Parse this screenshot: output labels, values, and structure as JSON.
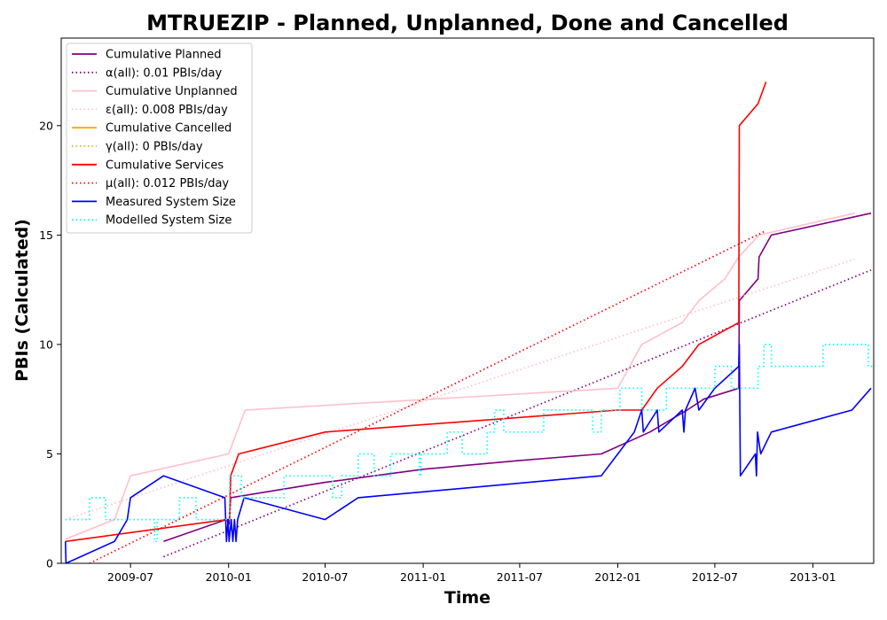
{
  "chart_data": {
    "type": "line",
    "title": "MTRUEZIP - Planned, Unplanned, Done  and Cancelled",
    "xlabel": "Time",
    "ylabel": "PBIs (Calculated)",
    "xlim": [
      "2009-02-21",
      "2013-04-25"
    ],
    "ylim": [
      0,
      24
    ],
    "xticks": [
      "2009-07",
      "2010-01",
      "2010-07",
      "2011-01",
      "2011-07",
      "2012-01",
      "2012-07",
      "2013-01"
    ],
    "xtick_dates": [
      "2009-07-01",
      "2010-01-01",
      "2010-07-01",
      "2011-01-01",
      "2011-07-01",
      "2012-01-01",
      "2012-07-01",
      "2013-01-01"
    ],
    "yticks": [
      0,
      5,
      10,
      15,
      20
    ],
    "grid": false,
    "legend_position": "top-left",
    "series": [
      {
        "name": "Cumulative Planned",
        "color": "#800080",
        "style": "solid",
        "points": [
          [
            "2009-09-01",
            1
          ],
          [
            "2009-12-28",
            2
          ],
          [
            "2010-01-02",
            1.8
          ],
          [
            "2010-01-05",
            3
          ],
          [
            "2010-07-01",
            3.7
          ],
          [
            "2010-10-01",
            4
          ],
          [
            "2011-01-01",
            4.3
          ],
          [
            "2011-07-01",
            4.7
          ],
          [
            "2011-12-01",
            5
          ],
          [
            "2012-03-01",
            6
          ],
          [
            "2012-05-10",
            7
          ],
          [
            "2012-06-10",
            7.5
          ],
          [
            "2012-08-15",
            8
          ],
          [
            "2012-08-16",
            12
          ],
          [
            "2012-09-20",
            13
          ],
          [
            "2012-09-22",
            14
          ],
          [
            "2012-10-15",
            15
          ],
          [
            "2013-04-20",
            16
          ]
        ]
      },
      {
        "name": "α(all): 0.01 PBIs/day",
        "color": "#800080",
        "style": "dotted",
        "points": [
          [
            "2009-09-01",
            0.3
          ],
          [
            "2013-04-20",
            13.4
          ]
        ]
      },
      {
        "name": "Cumulative Unplanned",
        "color": "#FFC0CB",
        "style": "solid",
        "points": [
          [
            "2009-03-01",
            1.1
          ],
          [
            "2009-06-01",
            2
          ],
          [
            "2009-07-01",
            4
          ],
          [
            "2010-01-01",
            5
          ],
          [
            "2010-02-01",
            7
          ],
          [
            "2012-01-01",
            8
          ],
          [
            "2012-02-15",
            10
          ],
          [
            "2012-05-01",
            11
          ],
          [
            "2012-06-01",
            12
          ],
          [
            "2012-07-20",
            13
          ],
          [
            "2012-08-15",
            14
          ],
          [
            "2012-09-22",
            15
          ],
          [
            "2013-03-20",
            16
          ]
        ]
      },
      {
        "name": "ε(all): 0.008 PBIs/day",
        "color": "#FFC0CB",
        "style": "dotted",
        "points": [
          [
            "2009-03-01",
            2.0
          ],
          [
            "2013-03-20",
            13.9
          ]
        ]
      },
      {
        "name": "Cumulative Cancelled",
        "color": "#FFA500",
        "style": "solid",
        "points": []
      },
      {
        "name": "γ(all): 0 PBIs/day",
        "color": "#FFA500",
        "style": "dotted",
        "points": []
      },
      {
        "name": "Cumulative Services",
        "color": "#FF0000",
        "style": "solid",
        "points": [
          [
            "2009-03-01",
            1
          ],
          [
            "2009-12-28",
            2
          ],
          [
            "2010-01-03",
            2
          ],
          [
            "2010-01-05",
            4
          ],
          [
            "2010-01-20",
            5
          ],
          [
            "2010-07-01",
            6
          ],
          [
            "2012-01-01",
            7
          ],
          [
            "2012-02-15",
            7
          ],
          [
            "2012-03-15",
            8
          ],
          [
            "2012-05-01",
            9
          ],
          [
            "2012-06-01",
            10
          ],
          [
            "2012-08-15",
            11
          ],
          [
            "2012-08-16",
            20
          ],
          [
            "2012-09-20",
            21
          ],
          [
            "2012-10-05",
            22
          ]
        ]
      },
      {
        "name": "μ(all): 0.012 PBIs/day",
        "color": "#FF0000",
        "style": "dotted",
        "points": [
          [
            "2009-04-15",
            0
          ],
          [
            "2012-10-05",
            15.2
          ]
        ]
      },
      {
        "name": "Measured System Size",
        "color": "#0000FF",
        "style": "solid",
        "points": [
          [
            "2009-03-01",
            1
          ],
          [
            "2009-03-02",
            0
          ],
          [
            "2009-06-01",
            1
          ],
          [
            "2009-06-25",
            2
          ],
          [
            "2009-07-01",
            3
          ],
          [
            "2009-09-01",
            4
          ],
          [
            "2009-12-25",
            3
          ],
          [
            "2009-12-28",
            1
          ],
          [
            "2009-12-31",
            2
          ],
          [
            "2010-01-02",
            1
          ],
          [
            "2010-01-06",
            2
          ],
          [
            "2010-01-09",
            1
          ],
          [
            "2010-01-12",
            2
          ],
          [
            "2010-01-15",
            1
          ],
          [
            "2010-01-18",
            2
          ],
          [
            "2010-01-30",
            3
          ],
          [
            "2010-07-01",
            2
          ],
          [
            "2010-09-01",
            3
          ],
          [
            "2011-12-01",
            4
          ],
          [
            "2012-01-01",
            5
          ],
          [
            "2012-02-01",
            6
          ],
          [
            "2012-02-15",
            7
          ],
          [
            "2012-02-18",
            6
          ],
          [
            "2012-03-15",
            7
          ],
          [
            "2012-03-18",
            6
          ],
          [
            "2012-05-01",
            7
          ],
          [
            "2012-05-04",
            6
          ],
          [
            "2012-05-07",
            7
          ],
          [
            "2012-05-25",
            8
          ],
          [
            "2012-06-01",
            7
          ],
          [
            "2012-07-01",
            8
          ],
          [
            "2012-08-15",
            9
          ],
          [
            "2012-08-16",
            10
          ],
          [
            "2012-08-18",
            4
          ],
          [
            "2012-09-15",
            5
          ],
          [
            "2012-09-17",
            4
          ],
          [
            "2012-09-19",
            6
          ],
          [
            "2012-09-25",
            5
          ],
          [
            "2012-10-15",
            6
          ],
          [
            "2013-03-15",
            7
          ],
          [
            "2013-04-20",
            8
          ]
        ]
      },
      {
        "name": "Modelled System Size",
        "color": "#00FFFF",
        "style": "dotted",
        "points": [
          [
            "2009-03-01",
            2
          ],
          [
            "2009-04-15",
            2
          ],
          [
            "2009-04-15",
            3
          ],
          [
            "2009-05-15",
            3
          ],
          [
            "2009-05-15",
            2
          ],
          [
            "2009-08-15",
            2
          ],
          [
            "2009-08-15",
            1
          ],
          [
            "2009-08-20",
            1
          ],
          [
            "2009-08-20",
            2
          ],
          [
            "2009-10-01",
            2
          ],
          [
            "2009-10-01",
            3
          ],
          [
            "2009-11-01",
            3
          ],
          [
            "2009-11-01",
            2
          ],
          [
            "2010-01-03",
            2
          ],
          [
            "2010-01-03",
            4
          ],
          [
            "2010-01-25",
            4
          ],
          [
            "2010-01-25",
            3
          ],
          [
            "2010-04-15",
            3
          ],
          [
            "2010-04-15",
            4
          ],
          [
            "2010-07-15",
            4
          ],
          [
            "2010-07-15",
            3
          ],
          [
            "2010-08-01",
            3
          ],
          [
            "2010-08-01",
            4
          ],
          [
            "2010-09-01",
            4
          ],
          [
            "2010-09-01",
            5
          ],
          [
            "2010-10-01",
            5
          ],
          [
            "2010-10-01",
            4
          ],
          [
            "2010-11-01",
            4
          ],
          [
            "2010-11-01",
            5
          ],
          [
            "2010-12-25",
            5
          ],
          [
            "2010-12-25",
            4
          ],
          [
            "2010-12-28",
            4
          ],
          [
            "2010-12-28",
            5
          ],
          [
            "2011-02-15",
            5
          ],
          [
            "2011-02-15",
            6
          ],
          [
            "2011-03-15",
            6
          ],
          [
            "2011-03-15",
            5
          ],
          [
            "2011-05-01",
            5
          ],
          [
            "2011-05-01",
            6
          ],
          [
            "2011-05-15",
            6
          ],
          [
            "2011-05-15",
            7
          ],
          [
            "2011-06-01",
            7
          ],
          [
            "2011-06-01",
            6
          ],
          [
            "2011-08-15",
            6
          ],
          [
            "2011-08-15",
            7
          ],
          [
            "2011-11-15",
            7
          ],
          [
            "2011-11-15",
            6
          ],
          [
            "2011-12-01",
            6
          ],
          [
            "2011-12-01",
            7
          ],
          [
            "2012-01-05",
            7
          ],
          [
            "2012-01-05",
            8
          ],
          [
            "2012-02-15",
            8
          ],
          [
            "2012-02-15",
            7
          ],
          [
            "2012-04-01",
            7
          ],
          [
            "2012-04-01",
            8
          ],
          [
            "2012-07-01",
            8
          ],
          [
            "2012-07-01",
            9
          ],
          [
            "2012-08-01",
            9
          ],
          [
            "2012-08-01",
            8
          ],
          [
            "2012-09-20",
            8
          ],
          [
            "2012-09-20",
            9
          ],
          [
            "2012-10-01",
            9
          ],
          [
            "2012-10-01",
            10
          ],
          [
            "2012-10-15",
            10
          ],
          [
            "2012-10-15",
            9
          ],
          [
            "2013-01-20",
            9
          ],
          [
            "2013-01-20",
            10
          ],
          [
            "2013-04-15",
            10
          ],
          [
            "2013-04-15",
            9
          ],
          [
            "2013-04-25",
            9
          ]
        ]
      }
    ]
  }
}
